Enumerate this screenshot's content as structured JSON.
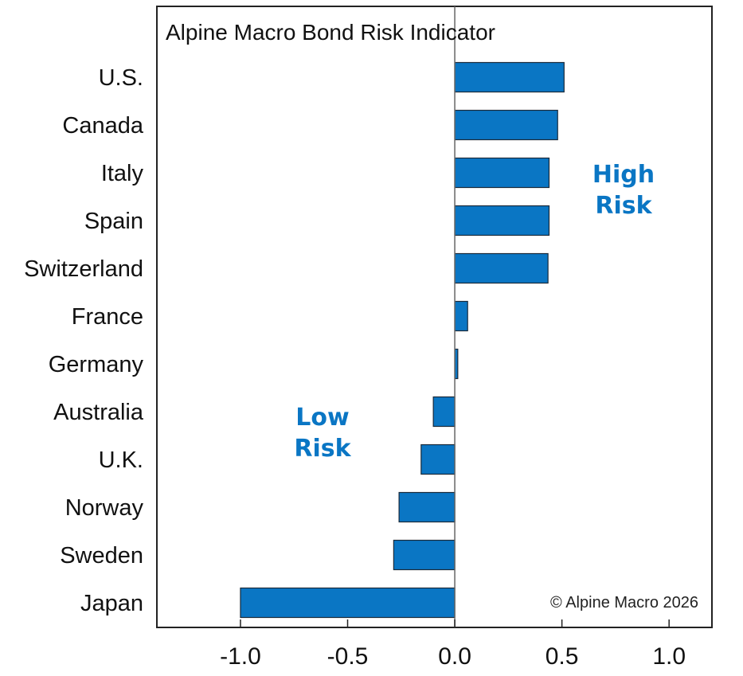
{
  "chart_data": {
    "type": "bar",
    "orientation": "horizontal",
    "title": "Alpine Macro Bond Risk Indicator",
    "xlabel": "",
    "ylabel": "",
    "categories": [
      "U.S.",
      "Canada",
      "Italy",
      "Spain",
      "Switzerland",
      "France",
      "Germany",
      "Australia",
      "U.K.",
      "Norway",
      "Sweden",
      "Japan"
    ],
    "values": [
      0.51,
      0.48,
      0.44,
      0.44,
      0.435,
      0.06,
      0.014,
      -0.1,
      -0.157,
      -0.26,
      -0.285,
      -1.0
    ],
    "xlim": [
      -1.39,
      1.2
    ],
    "xticks": [
      -1.0,
      -0.5,
      0.0,
      0.5,
      1.0
    ],
    "xtick_labels": [
      "-1.0",
      "-0.5",
      "0.0",
      "0.5",
      "1.0"
    ],
    "grid": false,
    "bar_color": "#0a76c4",
    "annotations": {
      "high_risk": [
        "High",
        "Risk"
      ],
      "low_risk": [
        "Low",
        "Risk"
      ],
      "annotation_color": "#0a76c4",
      "copyright": "© Alpine Macro 2026"
    }
  }
}
